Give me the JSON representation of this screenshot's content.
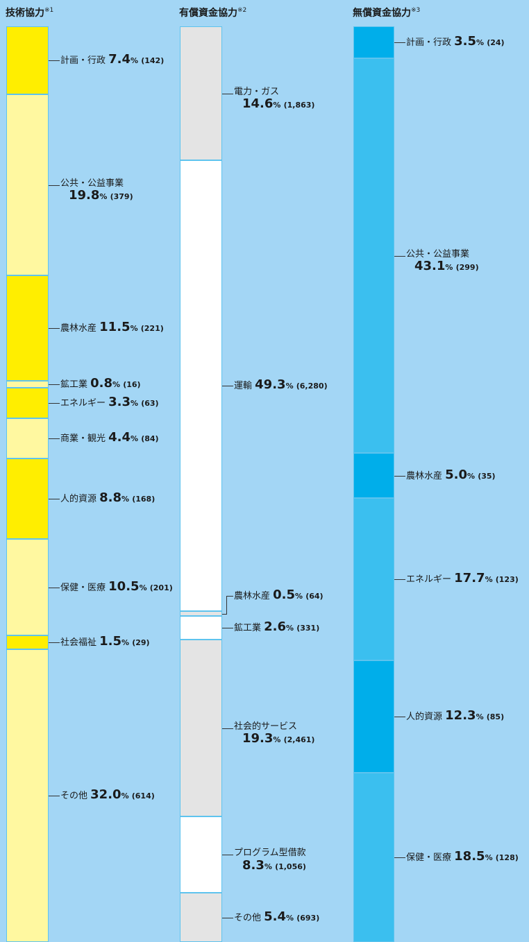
{
  "colors": {
    "background": "#a3d6f5",
    "segment_border": "#5ec3ee",
    "technical_dark": "#ffee00",
    "technical_light": "#fff8a0",
    "loan_grey": "#e4e4e4",
    "loan_white": "#ffffff",
    "grant_dark": "#00aeea",
    "grant_light": "#3bbfef"
  },
  "chart_data": [
    {
      "type": "bar",
      "title": "技術協力",
      "note_mark": "※1",
      "percent_unit": "%",
      "segments": [
        {
          "label": "計画・行政",
          "percent": 7.4,
          "count_text": "(142)",
          "shade": "dark",
          "layout": "inline"
        },
        {
          "label": "公共・公益事業",
          "percent": 19.8,
          "count_text": "(379)",
          "shade": "light",
          "layout": "stacked"
        },
        {
          "label": "農林水産",
          "percent": 11.5,
          "count_text": "(221)",
          "shade": "dark",
          "layout": "inline"
        },
        {
          "label": "鉱工業",
          "percent": 0.8,
          "count_text": "(16)",
          "shade": "light",
          "layout": "inline"
        },
        {
          "label": "エネルギー",
          "percent": 3.3,
          "count_text": "(63)",
          "shade": "dark",
          "layout": "inline"
        },
        {
          "label": "商業・観光",
          "percent": 4.4,
          "count_text": "(84)",
          "shade": "light",
          "layout": "inline"
        },
        {
          "label": "人的資源",
          "percent": 8.8,
          "count_text": "(168)",
          "shade": "dark",
          "layout": "inline"
        },
        {
          "label": "保健・医療",
          "percent": 10.5,
          "count_text": "(201)",
          "shade": "light",
          "layout": "inline"
        },
        {
          "label": "社会福祉",
          "percent": 1.5,
          "count_text": "(29)",
          "shade": "dark",
          "layout": "inline"
        },
        {
          "label": "その他",
          "percent": 32.0,
          "count_text": "(614)",
          "shade": "light",
          "layout": "inline"
        }
      ]
    },
    {
      "type": "bar",
      "title": "有償資金協力",
      "note_mark": "※2",
      "percent_unit": "%",
      "segments": [
        {
          "label": "電力・ガス",
          "percent": 14.6,
          "count_text": "(1,863)",
          "shade": "grey",
          "layout": "stacked"
        },
        {
          "label": "運輸",
          "percent": 49.3,
          "count_text": "(6,280)",
          "shade": "white",
          "layout": "inline"
        },
        {
          "label": "農林水産",
          "percent": 0.5,
          "count_text": "(64)",
          "shade": "grey",
          "layout": "inline"
        },
        {
          "label": "鉱工業",
          "percent": 2.6,
          "count_text": "(331)",
          "shade": "white",
          "layout": "inline"
        },
        {
          "label": "社会的サービス",
          "percent": 19.3,
          "count_text": "(2,461)",
          "shade": "grey",
          "layout": "stacked"
        },
        {
          "label": "プログラム型借款",
          "percent": 8.3,
          "count_text": "(1,056)",
          "shade": "white",
          "layout": "stacked"
        },
        {
          "label": "その他",
          "percent": 5.4,
          "count_text": "(693)",
          "shade": "grey",
          "layout": "inline"
        }
      ]
    },
    {
      "type": "bar",
      "title": "無償資金協力",
      "note_mark": "※3",
      "percent_unit": "%",
      "segments": [
        {
          "label": "計画・行政",
          "percent": 3.5,
          "count_text": "(24)",
          "shade": "dark",
          "layout": "inline"
        },
        {
          "label": "公共・公益事業",
          "percent": 43.1,
          "count_text": "(299)",
          "shade": "light",
          "layout": "stacked"
        },
        {
          "label": "農林水産",
          "percent": 5.0,
          "count_text": "(35)",
          "shade": "dark",
          "layout": "inline"
        },
        {
          "label": "エネルギー",
          "percent": 17.7,
          "count_text": "(123)",
          "shade": "light",
          "layout": "inline"
        },
        {
          "label": "人的資源",
          "percent": 12.3,
          "count_text": "(85)",
          "shade": "dark",
          "layout": "inline"
        },
        {
          "label": "保健・医療",
          "percent": 18.5,
          "count_text": "(128)",
          "shade": "light",
          "layout": "inline"
        }
      ]
    }
  ]
}
